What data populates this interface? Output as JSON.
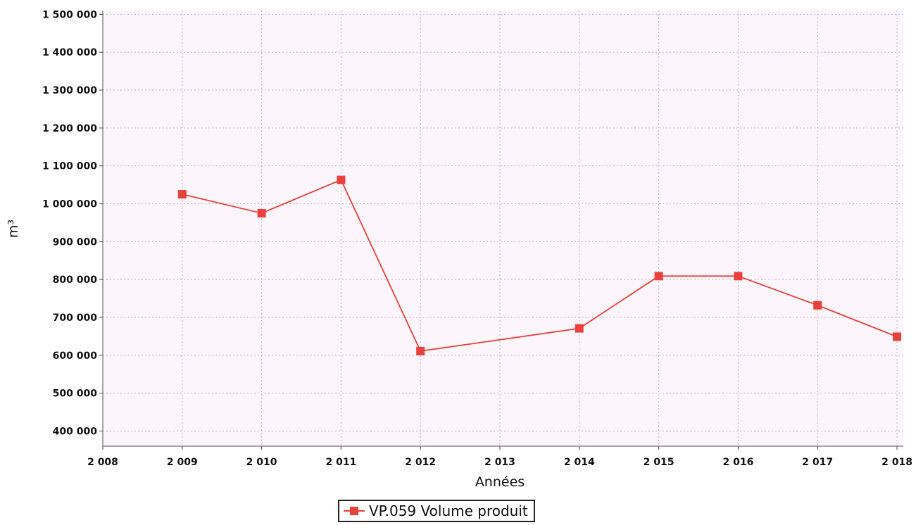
{
  "chart_data": {
    "type": "line",
    "title": "",
    "xlabel": "Années",
    "ylabel": "m³",
    "x_ticks": [
      "2 008",
      "2 009",
      "2 010",
      "2 011",
      "2 012",
      "2 013",
      "2 014",
      "2 015",
      "2 016",
      "2 017",
      "2 018"
    ],
    "y_ticks": [
      "400 000",
      "500 000",
      "600 000",
      "700 000",
      "800 000",
      "900 000",
      "1 000 000",
      "1 100 000",
      "1 200 000",
      "1 300 000",
      "1 400 000",
      "1 500 000"
    ],
    "xlim": [
      2008,
      2018
    ],
    "ylim": [
      360000,
      1510000
    ],
    "grid": true,
    "legend_position": "bottom-center",
    "series": [
      {
        "name": "VP.059 Volume produit",
        "color": "#e8413e",
        "x": [
          2009,
          2010,
          2011,
          2012,
          2014,
          2015,
          2016,
          2017,
          2018
        ],
        "y": [
          1025000,
          975000,
          1063000,
          611000,
          671000,
          809000,
          809000,
          732000,
          649000
        ]
      }
    ]
  }
}
